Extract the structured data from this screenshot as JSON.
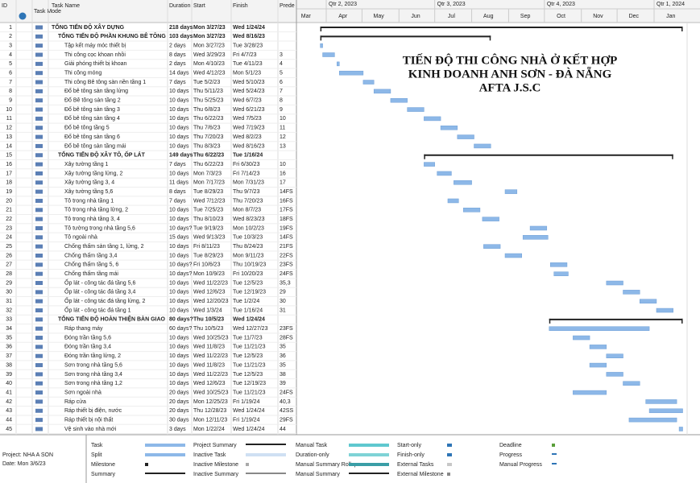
{
  "columns": [
    "ID",
    "Task Mode",
    "Task Name",
    "Duration",
    "Start",
    "Finish",
    "Prede"
  ],
  "rows": [
    {
      "id": 1,
      "name": "TỔNG TIẾN ĐỘ XÂY DỰNG",
      "duration": "218 days",
      "start": "Mon 3/27/23",
      "finish": "Wed 1/24/24",
      "summary": true
    },
    {
      "id": 2,
      "name": "TỔNG TIẾN ĐỘ PHẦN KHUNG BÊ TÔNG",
      "duration": "103 days",
      "start": "Mon 3/27/23",
      "finish": "Wed 8/16/23",
      "summary": true
    },
    {
      "id": 3,
      "name": "Tập kết máy móc thiết bị",
      "duration": "2 days",
      "start": "Mon 3/27/23",
      "finish": "Tue 3/28/23"
    },
    {
      "id": 4,
      "name": "Thi công cọc khoan nhồi",
      "duration": "8 days",
      "start": "Wed 3/29/23",
      "finish": "Fri 4/7/23",
      "pred": "3"
    },
    {
      "id": 5,
      "name": "Giải phóng thiết bị khoan",
      "duration": "2 days",
      "start": "Mon 4/10/23",
      "finish": "Tue 4/11/23",
      "pred": "4"
    },
    {
      "id": 6,
      "name": "Thi công móng",
      "duration": "14 days",
      "start": "Wed 4/12/23",
      "finish": "Mon 5/1/23",
      "pred": "5"
    },
    {
      "id": 7,
      "name": "Thi công Bê tông sàn nền tầng 1",
      "duration": "7 days",
      "start": "Tue 5/2/23",
      "finish": "Wed 5/10/23",
      "pred": "6"
    },
    {
      "id": 8,
      "name": "Đổ bê tông sàn tầng lửng",
      "duration": "10 days",
      "start": "Thu 5/11/23",
      "finish": "Wed 5/24/23",
      "pred": "7"
    },
    {
      "id": 9,
      "name": "Đổ Bê tông sàn tầng 2",
      "duration": "10 days",
      "start": "Thu 5/25/23",
      "finish": "Wed 6/7/23",
      "pred": "8"
    },
    {
      "id": 10,
      "name": "Đổ bê tông sàn tầng 3",
      "duration": "10 days",
      "start": "Thu 6/8/23",
      "finish": "Wed 6/21/23",
      "pred": "9"
    },
    {
      "id": 11,
      "name": "Đổ bê tông sàn tầng 4",
      "duration": "10 days",
      "start": "Thu 6/22/23",
      "finish": "Wed 7/5/23",
      "pred": "10"
    },
    {
      "id": 12,
      "name": "Đổ bê tông tầng 5",
      "duration": "10 days",
      "start": "Thu 7/6/23",
      "finish": "Wed 7/19/23",
      "pred": "11"
    },
    {
      "id": 13,
      "name": "Đổ bê tông sàn tầng 6",
      "duration": "10 days",
      "start": "Thu 7/20/23",
      "finish": "Wed 8/2/23",
      "pred": "12"
    },
    {
      "id": 14,
      "name": "Đổ bê tông sàn tầng mái",
      "duration": "10 days",
      "start": "Thu 8/3/23",
      "finish": "Wed 8/16/23",
      "pred": "13"
    },
    {
      "id": 15,
      "name": "TỔNG TIẾN ĐỘ XÂY TÔ, ỐP LÁT",
      "duration": "149 days",
      "start": "Thu 6/22/23",
      "finish": "Tue 1/16/24",
      "summary": true
    },
    {
      "id": 16,
      "name": "Xây tường tầng 1",
      "duration": "7 days",
      "start": "Thu 6/22/23",
      "finish": "Fri 6/30/23",
      "pred": "10"
    },
    {
      "id": 17,
      "name": "Xây tường tầng lửng, 2",
      "duration": "10 days",
      "start": "Mon 7/3/23",
      "finish": "Fri 7/14/23",
      "pred": "16"
    },
    {
      "id": 18,
      "name": "Xây tường tầng 3, 4",
      "duration": "11 days",
      "start": "Mon 7/17/23",
      "finish": "Mon 7/31/23",
      "pred": "17"
    },
    {
      "id": 19,
      "name": "Xây tường tầng 5,6",
      "duration": "8 days",
      "start": "Tue 8/29/23",
      "finish": "Thu 9/7/23",
      "pred": "14FS"
    },
    {
      "id": 20,
      "name": "Tô trong nhà tầng 1",
      "duration": "7 days",
      "start": "Wed 7/12/23",
      "finish": "Thu 7/20/23",
      "pred": "16FS"
    },
    {
      "id": 21,
      "name": "Tô trong nhà tầng lửng, 2",
      "duration": "10 days",
      "start": "Tue 7/25/23",
      "finish": "Mon 8/7/23",
      "pred": "17FS"
    },
    {
      "id": 22,
      "name": "Tô trong nhà tầng 3, 4",
      "duration": "10 days",
      "start": "Thu 8/10/23",
      "finish": "Wed 8/23/23",
      "pred": "18FS"
    },
    {
      "id": 23,
      "name": "Tô tường trong nhà tầng 5,6",
      "duration": "10 days?",
      "start": "Tue 9/19/23",
      "finish": "Mon 10/2/23",
      "pred": "19FS"
    },
    {
      "id": 24,
      "name": "Tô ngoài nhà",
      "duration": "15 days",
      "start": "Wed 9/13/23",
      "finish": "Tue 10/3/23",
      "pred": "14FS"
    },
    {
      "id": 25,
      "name": "Chống thấm sàn tầng 1, lửng, 2",
      "duration": "10 days",
      "start": "Fri 8/11/23",
      "finish": "Thu 8/24/23",
      "pred": "21FS"
    },
    {
      "id": 26,
      "name": "Chống thấm tầng 3,4",
      "duration": "10 days",
      "start": "Tue 8/29/23",
      "finish": "Mon 9/11/23",
      "pred": "22FS"
    },
    {
      "id": 27,
      "name": "Chống thấm tầng 5, 6",
      "duration": "10 days?",
      "start": "Fri 10/6/23",
      "finish": "Thu 10/19/23",
      "pred": "23FS"
    },
    {
      "id": 28,
      "name": "Chống thấm tầng mái",
      "duration": "10 days?",
      "start": "Mon 10/9/23",
      "finish": "Fri 10/20/23",
      "pred": "24FS"
    },
    {
      "id": 29,
      "name": "Ốp lát - công tác đá tầng 5,6",
      "duration": "10 days",
      "start": "Wed 11/22/23",
      "finish": "Tue 12/5/23",
      "pred": "35,3"
    },
    {
      "id": 30,
      "name": "Ốp lát - công tác đá tầng 3,4",
      "duration": "10 days",
      "start": "Wed 12/6/23",
      "finish": "Tue 12/19/23",
      "pred": "29"
    },
    {
      "id": 31,
      "name": "Ốp lát - công tác đá tầng lửng, 2",
      "duration": "10 days",
      "start": "Wed 12/20/23",
      "finish": "Tue 1/2/24",
      "pred": "30"
    },
    {
      "id": 32,
      "name": "Ốp lát - công tác đá tầng 1",
      "duration": "10 days",
      "start": "Wed 1/3/24",
      "finish": "Tue 1/16/24",
      "pred": "31"
    },
    {
      "id": 33,
      "name": "TỔNG TIẾN ĐỘ HOÀN THIỆN BÀN GIAO",
      "duration": "80 days?",
      "start": "Thu 10/5/23",
      "finish": "Wed 1/24/24",
      "summary": true
    },
    {
      "id": 34,
      "name": "Ráp thang máy",
      "duration": "60 days?",
      "start": "Thu 10/5/23",
      "finish": "Wed 12/27/23",
      "pred": "23FS"
    },
    {
      "id": 35,
      "name": "Đóng trần tầng 5,6",
      "duration": "10 days",
      "start": "Wed 10/25/23",
      "finish": "Tue 11/7/23",
      "pred": "28FS"
    },
    {
      "id": 36,
      "name": "Đóng trần tầng 3,4",
      "duration": "10 days",
      "start": "Wed 11/8/23",
      "finish": "Tue 11/21/23",
      "pred": "35"
    },
    {
      "id": 37,
      "name": "Đóng trần tầng lửng, 2",
      "duration": "10 days",
      "start": "Wed 11/22/23",
      "finish": "Tue 12/5/23",
      "pred": "36"
    },
    {
      "id": 38,
      "name": "Sơn trong nhà tầng 5,6",
      "duration": "10 days",
      "start": "Wed 11/8/23",
      "finish": "Tue 11/21/23",
      "pred": "35"
    },
    {
      "id": 39,
      "name": "Sơn trong nhà tầng 3,4",
      "duration": "10 days",
      "start": "Wed 11/22/23",
      "finish": "Tue 12/5/23",
      "pred": "38"
    },
    {
      "id": 40,
      "name": "Sơn trong nhà tầng 1,2",
      "duration": "10 days",
      "start": "Wed 12/6/23",
      "finish": "Tue 12/19/23",
      "pred": "39"
    },
    {
      "id": 41,
      "name": "Sơn ngoài nhà",
      "duration": "20 days",
      "start": "Wed 10/25/23",
      "finish": "Tue 11/21/23",
      "pred": "24FS"
    },
    {
      "id": 42,
      "name": "Ráp cửa",
      "duration": "20 days",
      "start": "Mon 12/25/23",
      "finish": "Fri 1/19/24",
      "pred": "40,3"
    },
    {
      "id": 43,
      "name": "Ráp thiết bị điện, nước",
      "duration": "20 days",
      "start": "Thu 12/28/23",
      "finish": "Wed 1/24/24",
      "pred": "42SS"
    },
    {
      "id": 44,
      "name": "Ráp thiết bị nội thất",
      "duration": "30 days",
      "start": "Mon 12/11/23",
      "finish": "Fri 1/19/24",
      "pred": "29FS"
    },
    {
      "id": 45,
      "name": "Vệ sinh vào nhà mới",
      "duration": "3 days",
      "start": "Mon 1/22/24",
      "finish": "Wed 1/24/24",
      "pred": "44"
    }
  ],
  "timeline": {
    "quarters": [
      "Qtr 2, 2023",
      "Qtr 3, 2023",
      "Qtr 4, 2023",
      "Qtr 1, 2024"
    ],
    "months": [
      "Mar",
      "Apr",
      "May",
      "Jun",
      "Jul",
      "Aug",
      "Sep",
      "Oct",
      "Nov",
      "Dec",
      "Jan"
    ]
  },
  "overlay_title": [
    "TIẾN ĐỘ THI CÔNG NHÀ Ở KẾT HỢP",
    "KINH DOANH ANH SƠN - ĐÀ NẴNG",
    "AFTA J.S.C"
  ],
  "legend": [
    "Task",
    "Split",
    "Milestone",
    "Summary",
    "Project Summary",
    "Inactive Task",
    "Inactive Milestone",
    "Inactive Summary",
    "Manual Task",
    "Duration-only",
    "Manual Summary Rollup",
    "Manual Summary",
    "Start-only",
    "Finish-only",
    "External Tasks",
    "External Milestone",
    "Deadline",
    "Progress",
    "Manual Progress"
  ],
  "footer": {
    "project": "Project: NHA A SON",
    "date": "Date: Mon 3/6/23"
  }
}
